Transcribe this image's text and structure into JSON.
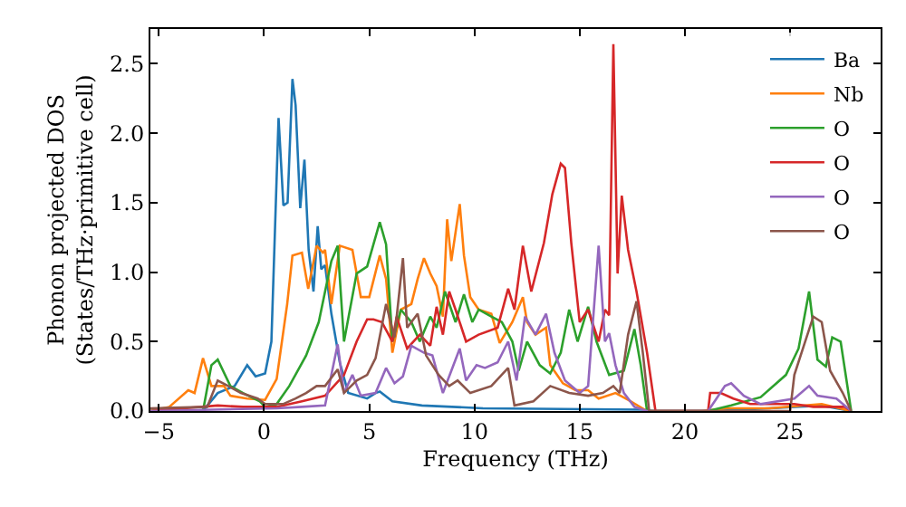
{
  "chart_data": {
    "type": "line",
    "xlabel": "Frequency (THz)",
    "ylabel": "Phonon projected DOS\n(States/THz·primitive cell)",
    "xlim": [
      -5.4,
      29.3
    ],
    "ylim": [
      0,
      2.75
    ],
    "xticks": [
      -5,
      0,
      5,
      10,
      15,
      20,
      25
    ],
    "yticks": [
      {
        "value": 0,
        "label": "0.0"
      },
      {
        "value": 0.5,
        "label": "0.5"
      },
      {
        "value": 1,
        "label": "1.0"
      },
      {
        "value": 1.5,
        "label": "1.5"
      },
      {
        "value": 2,
        "label": "2.0"
      },
      {
        "value": 2.5,
        "label": "2.5"
      }
    ],
    "legend": "top right",
    "marker": "none",
    "line_style": "solid",
    "series": [
      {
        "name": "Ba",
        "color": "#1f77b4",
        "x": [
          -5.4,
          -3,
          -2.8,
          -2.2,
          -1.4,
          -0.8,
          -0.4,
          0.05,
          0.35,
          0.69,
          0.92,
          1.12,
          1.35,
          1.5,
          1.72,
          1.92,
          2.12,
          2.35,
          2.55,
          2.72,
          2.9,
          3.2,
          3.6,
          4.0,
          4.9,
          5.3,
          5.5,
          6.1,
          7.5,
          10.4,
          18.0,
          18.5,
          21.2,
          24,
          26.5,
          27.9
        ],
        "values": [
          0,
          0,
          0.02,
          0.13,
          0.18,
          0.33,
          0.25,
          0.27,
          0.5,
          2.11,
          1.48,
          1.5,
          2.39,
          2.2,
          1.46,
          1.81,
          1.16,
          0.86,
          1.33,
          1.02,
          1.05,
          0.7,
          0.35,
          0.13,
          0.09,
          0.13,
          0.14,
          0.07,
          0.04,
          0.02,
          0.01,
          0,
          0,
          0.02,
          0.04,
          0
        ]
      },
      {
        "name": "Nb",
        "color": "#ff7f0e",
        "x": [
          -5.4,
          -4.5,
          -3.6,
          -3.3,
          -2.9,
          -2.5,
          -1.9,
          -1.6,
          -0.8,
          0.05,
          0.6,
          1.1,
          1.35,
          1.8,
          2.1,
          2.5,
          2.8,
          2.9,
          3.2,
          3.6,
          4.2,
          4.6,
          5.0,
          5.5,
          5.8,
          6.1,
          6.5,
          7.0,
          7.3,
          7.6,
          7.9,
          8.2,
          8.5,
          8.7,
          8.9,
          9.3,
          9.5,
          9.8,
          10.2,
          10.8,
          11.2,
          11.8,
          12.3,
          12.5,
          12.9,
          13.4,
          13.6,
          14.2,
          14.8,
          15.4,
          15.9,
          16.7,
          17.3,
          18.2,
          20.8,
          22,
          24,
          26.5,
          27.9
        ],
        "values": [
          0,
          0.03,
          0.15,
          0.13,
          0.38,
          0.18,
          0.18,
          0.11,
          0.09,
          0.08,
          0.23,
          0.77,
          1.12,
          1.14,
          0.88,
          1.19,
          1.14,
          1.16,
          0.77,
          1.19,
          1.16,
          0.82,
          0.82,
          1.12,
          0.95,
          0.42,
          0.73,
          0.77,
          0.95,
          1.1,
          0.99,
          0.9,
          0.68,
          1.38,
          1.08,
          1.49,
          1.12,
          0.82,
          0.73,
          0.7,
          0.49,
          0.64,
          0.82,
          0.64,
          0.55,
          0.6,
          0.33,
          0.2,
          0.15,
          0.15,
          0.09,
          0.13,
          0.08,
          0,
          0,
          0.02,
          0.02,
          0.05,
          0
        ]
      },
      {
        "name": "O",
        "color": "#2ca02c",
        "x": [
          -5.4,
          -2.9,
          -2.5,
          -2.2,
          -1.6,
          -1.0,
          -0.2,
          0.05,
          0.6,
          1.2,
          2.0,
          2.6,
          3.2,
          3.5,
          3.8,
          4.4,
          4.9,
          5.5,
          5.8,
          6.1,
          6.5,
          7.0,
          7.4,
          7.9,
          8.2,
          8.6,
          9.1,
          9.5,
          9.9,
          10.2,
          10.8,
          11.3,
          11.8,
          12.1,
          12.5,
          13.1,
          13.6,
          14.1,
          14.5,
          14.9,
          15.4,
          15.8,
          16.4,
          17.1,
          17.6,
          17.9,
          18.2,
          21.1,
          22.2,
          23.6,
          24.8,
          25.4,
          25.9,
          26.3,
          26.7,
          27.0,
          27.4,
          27.9
        ],
        "values": [
          0,
          0,
          0.33,
          0.37,
          0.18,
          0.13,
          0.07,
          0.03,
          0.05,
          0.18,
          0.4,
          0.64,
          1.08,
          1.19,
          0.5,
          0.99,
          1.04,
          1.36,
          1.2,
          0.5,
          0.73,
          0.64,
          0.5,
          0.68,
          0.6,
          0.86,
          0.64,
          0.84,
          0.64,
          0.73,
          0.68,
          0.64,
          0.5,
          0.29,
          0.5,
          0.33,
          0.27,
          0.42,
          0.73,
          0.5,
          0.75,
          0.5,
          0.26,
          0.29,
          0.59,
          0.33,
          0,
          0,
          0.04,
          0.1,
          0.26,
          0.45,
          0.86,
          0.37,
          0.32,
          0.53,
          0.5,
          0
        ]
      },
      {
        "name": "O",
        "color": "#d62728",
        "x": [
          -5.4,
          -2.2,
          -1.0,
          0.6,
          1.8,
          2.9,
          3.8,
          4.4,
          4.9,
          5.2,
          5.6,
          6.1,
          6.3,
          6.8,
          7.4,
          7.9,
          8.2,
          8.5,
          8.8,
          9.1,
          9.6,
          10.2,
          11.1,
          11.6,
          11.9,
          12.3,
          12.7,
          13.3,
          13.7,
          14.1,
          14.3,
          14.6,
          15.0,
          15.4,
          15.9,
          16.2,
          16.4,
          16.6,
          16.8,
          17.0,
          17.3,
          17.7,
          18.2,
          18.6,
          21.1,
          21.2,
          21.7,
          22.3,
          23.1,
          25.2,
          26.1,
          27.6,
          27.9
        ],
        "values": [
          0,
          0.04,
          0.03,
          0.03,
          0.07,
          0.11,
          0.26,
          0.5,
          0.66,
          0.66,
          0.64,
          0.5,
          0.68,
          0.45,
          0.55,
          0.47,
          0.75,
          0.55,
          0.86,
          0.73,
          0.5,
          0.55,
          0.6,
          0.88,
          0.73,
          1.19,
          0.86,
          1.21,
          1.56,
          1.78,
          1.75,
          1.21,
          0.64,
          0.73,
          0.5,
          0.73,
          0.69,
          2.64,
          0.99,
          1.55,
          1.16,
          0.86,
          0.42,
          0,
          0,
          0.13,
          0.13,
          0.09,
          0.05,
          0.05,
          0.03,
          0.03,
          0
        ]
      },
      {
        "name": "O",
        "color": "#9467bd",
        "x": [
          -5.4,
          0.6,
          1.8,
          2.9,
          3.5,
          3.8,
          4.2,
          4.6,
          5.3,
          5.8,
          6.2,
          6.6,
          7.0,
          7.6,
          8.0,
          8.5,
          8.9,
          9.3,
          9.6,
          10.1,
          10.5,
          11.1,
          11.6,
          12.0,
          12.4,
          12.9,
          13.4,
          13.8,
          14.3,
          15.0,
          15.4,
          15.9,
          16.2,
          16.4,
          16.7,
          17.1,
          17.6,
          18.2,
          21.1,
          21.5,
          21.9,
          22.2,
          22.8,
          23.6,
          25.2,
          25.9,
          26.3,
          27.2,
          27.9
        ],
        "values": [
          0,
          0.02,
          0.03,
          0.04,
          0.48,
          0.13,
          0.26,
          0.11,
          0.13,
          0.31,
          0.2,
          0.25,
          0.47,
          0.42,
          0.4,
          0.13,
          0.29,
          0.45,
          0.22,
          0.33,
          0.31,
          0.35,
          0.5,
          0.22,
          0.68,
          0.55,
          0.7,
          0.42,
          0.22,
          0.13,
          0.18,
          1.19,
          0.5,
          0.56,
          0.33,
          0.13,
          0.03,
          0,
          0,
          0.09,
          0.18,
          0.2,
          0.11,
          0.05,
          0.09,
          0.18,
          0.11,
          0.09,
          0
        ]
      },
      {
        "name": "O",
        "color": "#8c564b",
        "x": [
          -5.4,
          -2.7,
          -2.2,
          -1.7,
          -1.1,
          -0.3,
          0.05,
          0.9,
          1.5,
          2.0,
          2.5,
          2.9,
          3.5,
          3.8,
          4.4,
          4.9,
          5.3,
          5.8,
          6.2,
          6.6,
          6.8,
          7.3,
          7.7,
          8.3,
          8.8,
          9.2,
          9.8,
          10.8,
          11.6,
          11.9,
          12.8,
          13.6,
          14.5,
          15.4,
          16.1,
          16.6,
          16.9,
          17.3,
          17.7,
          18.0,
          18.3,
          25.0,
          25.2,
          26.1,
          26.5,
          26.9,
          27.5,
          27.9
        ],
        "values": [
          0.02,
          0.03,
          0.22,
          0.18,
          0.13,
          0.09,
          0.05,
          0.05,
          0.09,
          0.13,
          0.18,
          0.18,
          0.3,
          0.13,
          0.22,
          0.26,
          0.38,
          0.77,
          0.53,
          1.1,
          0.6,
          0.7,
          0.4,
          0.26,
          0.18,
          0.22,
          0.13,
          0.18,
          0.31,
          0.04,
          0.07,
          0.18,
          0.13,
          0.11,
          0.13,
          0.18,
          0.13,
          0.55,
          0.79,
          0.42,
          0,
          0,
          0.26,
          0.68,
          0.64,
          0.29,
          0.13,
          0
        ]
      }
    ]
  }
}
